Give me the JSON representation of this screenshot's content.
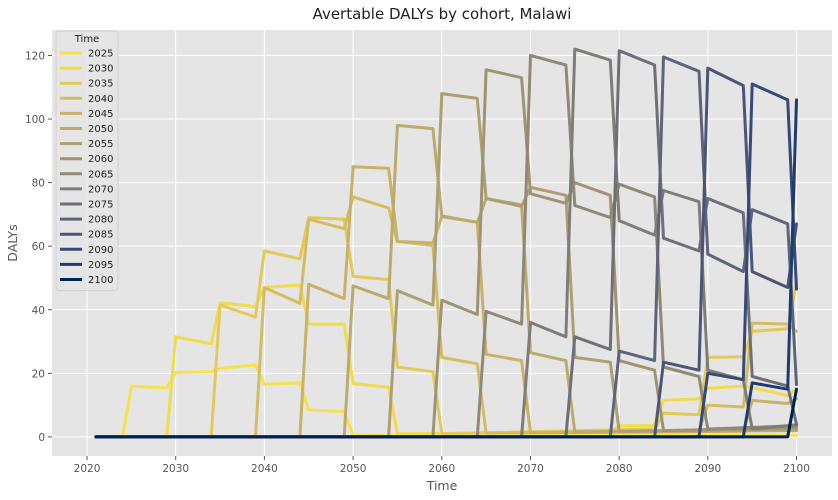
{
  "chart_data": {
    "type": "line",
    "title": "Avertable DALYs by cohort, Malawi",
    "xlabel": "Time",
    "ylabel": "DALYs",
    "xlim": [
      2016.05,
      2104.0
    ],
    "ylim": [
      -6,
      128
    ],
    "xticks": [
      2020,
      2030,
      2040,
      2050,
      2060,
      2070,
      2080,
      2090,
      2100
    ],
    "yticks": [
      0,
      20,
      40,
      60,
      80,
      100,
      120
    ],
    "grid": true,
    "legend": {
      "title": "Time",
      "placement": "top-left"
    },
    "series": [
      {
        "name": "2025",
        "color": "#f7e04e",
        "points": [
          [
            2021,
            0
          ],
          [
            2024,
            0
          ],
          [
            2025,
            16
          ],
          [
            2029,
            15.4
          ],
          [
            2030,
            20.3
          ],
          [
            2034,
            20.5
          ],
          [
            2035,
            21.6
          ],
          [
            2039,
            22.6
          ],
          [
            2040,
            16.6
          ],
          [
            2044,
            17
          ],
          [
            2045,
            8.5
          ],
          [
            2049,
            8
          ],
          [
            2050,
            0.5
          ],
          [
            2100,
            0.5
          ]
        ]
      },
      {
        "name": "2030",
        "color": "#f2da4d",
        "points": [
          [
            2021,
            0
          ],
          [
            2029,
            0
          ],
          [
            2030,
            31.5
          ],
          [
            2034,
            29.3
          ],
          [
            2035,
            42.2
          ],
          [
            2039,
            41
          ],
          [
            2040,
            47
          ],
          [
            2044,
            47.8
          ],
          [
            2045,
            35.5
          ],
          [
            2049,
            35.5
          ],
          [
            2050,
            16.8
          ],
          [
            2054,
            15.6
          ],
          [
            2055,
            1
          ],
          [
            2079,
            1.5
          ],
          [
            2080,
            3.5
          ],
          [
            2084,
            3.6
          ],
          [
            2085,
            11.5
          ],
          [
            2089,
            12
          ],
          [
            2090,
            15.3
          ],
          [
            2094,
            16
          ],
          [
            2095,
            15.5
          ],
          [
            2099,
            13
          ],
          [
            2100,
            15
          ]
        ]
      },
      {
        "name": "2035",
        "color": "#e3ca58",
        "points": [
          [
            2021,
            0
          ],
          [
            2034,
            0
          ],
          [
            2035,
            41.5
          ],
          [
            2039,
            37.7
          ],
          [
            2040,
            58.5
          ],
          [
            2044,
            56
          ],
          [
            2045,
            69
          ],
          [
            2049,
            68.5
          ],
          [
            2050,
            50.5
          ],
          [
            2054,
            49.5
          ],
          [
            2055,
            22
          ],
          [
            2059,
            20.5
          ],
          [
            2060,
            1
          ],
          [
            2084,
            2.5
          ],
          [
            2085,
            7.5
          ],
          [
            2089,
            7
          ],
          [
            2090,
            25
          ],
          [
            2094,
            25.2
          ],
          [
            2095,
            33.2
          ],
          [
            2099,
            34
          ],
          [
            2100,
            48.5
          ]
        ]
      },
      {
        "name": "2040",
        "color": "#d4bc62",
        "points": [
          [
            2021,
            0
          ],
          [
            2039,
            0
          ],
          [
            2040,
            47
          ],
          [
            2044,
            42
          ],
          [
            2045,
            68.5
          ],
          [
            2049,
            65.5
          ],
          [
            2050,
            75.5
          ],
          [
            2054,
            72
          ],
          [
            2055,
            61.5
          ],
          [
            2059,
            60.2
          ],
          [
            2060,
            25
          ],
          [
            2064,
            23
          ],
          [
            2065,
            1.2
          ],
          [
            2089,
            2
          ],
          [
            2090,
            10
          ],
          [
            2094,
            9.4
          ],
          [
            2095,
            35.8
          ],
          [
            2099,
            35.5
          ],
          [
            2100,
            33.2
          ]
        ]
      },
      {
        "name": "2045",
        "color": "#c9b167",
        "points": [
          [
            2021,
            0
          ],
          [
            2044,
            0
          ],
          [
            2045,
            48
          ],
          [
            2049,
            43.5
          ],
          [
            2050,
            85
          ],
          [
            2054,
            84.5
          ],
          [
            2055,
            61.5
          ],
          [
            2059,
            61
          ],
          [
            2060,
            69.3
          ],
          [
            2064,
            67.5
          ],
          [
            2065,
            26
          ],
          [
            2069,
            24
          ],
          [
            2070,
            1.3
          ],
          [
            2094,
            1.8
          ],
          [
            2095,
            11.5
          ],
          [
            2099,
            10.5
          ],
          [
            2100,
            12
          ]
        ]
      },
      {
        "name": "2050",
        "color": "#bbaa6c",
        "points": [
          [
            2021,
            0
          ],
          [
            2049,
            0
          ],
          [
            2050,
            47.5
          ],
          [
            2054,
            43.5
          ],
          [
            2055,
            98
          ],
          [
            2059,
            97
          ],
          [
            2060,
            69.5
          ],
          [
            2064,
            67.5
          ],
          [
            2065,
            75
          ],
          [
            2069,
            73
          ],
          [
            2070,
            26.5
          ],
          [
            2074,
            24
          ],
          [
            2075,
            1.6
          ],
          [
            2100,
            2
          ]
        ]
      },
      {
        "name": "2055",
        "color": "#ad9f70",
        "points": [
          [
            2021,
            0
          ],
          [
            2054,
            0
          ],
          [
            2055,
            46
          ],
          [
            2059,
            41.5
          ],
          [
            2060,
            108
          ],
          [
            2064,
            106.5
          ],
          [
            2065,
            75
          ],
          [
            2069,
            72.5
          ],
          [
            2070,
            78.5
          ],
          [
            2074,
            76
          ],
          [
            2075,
            25
          ],
          [
            2079,
            23.5
          ],
          [
            2080,
            1.8
          ],
          [
            2100,
            2.5
          ]
        ]
      },
      {
        "name": "2060",
        "color": "#9e9473",
        "points": [
          [
            2021,
            0
          ],
          [
            2059,
            0
          ],
          [
            2060,
            43
          ],
          [
            2064,
            38.5
          ],
          [
            2065,
            115.5
          ],
          [
            2069,
            113
          ],
          [
            2070,
            76.5
          ],
          [
            2074,
            73.5
          ],
          [
            2075,
            80
          ],
          [
            2079,
            76
          ],
          [
            2080,
            24
          ],
          [
            2084,
            21
          ],
          [
            2085,
            2
          ],
          [
            2100,
            3
          ]
        ]
      },
      {
        "name": "2065",
        "color": "#8f8976",
        "points": [
          [
            2021,
            0
          ],
          [
            2064,
            0
          ],
          [
            2065,
            39.5
          ],
          [
            2069,
            35.5
          ],
          [
            2070,
            120
          ],
          [
            2074,
            117
          ],
          [
            2075,
            72.8
          ],
          [
            2079,
            69
          ],
          [
            2080,
            79.5
          ],
          [
            2084,
            75.5
          ],
          [
            2085,
            22
          ],
          [
            2089,
            19
          ],
          [
            2090,
            2.5
          ],
          [
            2100,
            3.5
          ]
        ]
      },
      {
        "name": "2070",
        "color": "#7f7d77",
        "points": [
          [
            2021,
            0
          ],
          [
            2069,
            0
          ],
          [
            2070,
            36
          ],
          [
            2074,
            31.5
          ],
          [
            2075,
            122
          ],
          [
            2079,
            118.5
          ],
          [
            2080,
            68
          ],
          [
            2084,
            63.5
          ],
          [
            2085,
            77.5
          ],
          [
            2089,
            74
          ],
          [
            2090,
            21
          ],
          [
            2094,
            18
          ],
          [
            2095,
            2.5
          ],
          [
            2100,
            3.8
          ]
        ]
      },
      {
        "name": "2075",
        "color": "#6e7077",
        "points": [
          [
            2021,
            0
          ],
          [
            2074,
            0
          ],
          [
            2075,
            31.5
          ],
          [
            2079,
            27.5
          ],
          [
            2080,
            121.5
          ],
          [
            2084,
            117
          ],
          [
            2085,
            62.5
          ],
          [
            2089,
            58.5
          ],
          [
            2090,
            75
          ],
          [
            2094,
            70.5
          ],
          [
            2095,
            19
          ],
          [
            2099,
            16
          ],
          [
            2100,
            4
          ]
        ]
      },
      {
        "name": "2080",
        "color": "#5e6479",
        "points": [
          [
            2021,
            0
          ],
          [
            2079,
            0
          ],
          [
            2080,
            27
          ],
          [
            2084,
            24
          ],
          [
            2085,
            119.5
          ],
          [
            2089,
            115
          ],
          [
            2090,
            57.5
          ],
          [
            2094,
            52
          ],
          [
            2095,
            71.5
          ],
          [
            2099,
            67
          ],
          [
            2100,
            16.5
          ]
        ]
      },
      {
        "name": "2085",
        "color": "#4b557a",
        "points": [
          [
            2021,
            0
          ],
          [
            2084,
            0
          ],
          [
            2085,
            23.5
          ],
          [
            2089,
            21
          ],
          [
            2090,
            116
          ],
          [
            2094,
            110.5
          ],
          [
            2095,
            52
          ],
          [
            2099,
            47
          ],
          [
            2100,
            67
          ]
        ]
      },
      {
        "name": "2090",
        "color": "#374a77",
        "points": [
          [
            2021,
            0
          ],
          [
            2089,
            0
          ],
          [
            2090,
            20
          ],
          [
            2094,
            18
          ],
          [
            2095,
            111
          ],
          [
            2099,
            106
          ],
          [
            2100,
            46.5
          ]
        ]
      },
      {
        "name": "2095",
        "color": "#203b6f",
        "points": [
          [
            2021,
            0
          ],
          [
            2094,
            0
          ],
          [
            2095,
            17
          ],
          [
            2099,
            15
          ],
          [
            2100,
            106
          ]
        ]
      },
      {
        "name": "2100",
        "color": "#00224e",
        "points": [
          [
            2021,
            0
          ],
          [
            2099,
            0
          ],
          [
            2100,
            15
          ]
        ]
      }
    ]
  },
  "style": {
    "plot_bg": "#e5e5e5",
    "grid_color": "#ffffff",
    "line_width": 3
  }
}
